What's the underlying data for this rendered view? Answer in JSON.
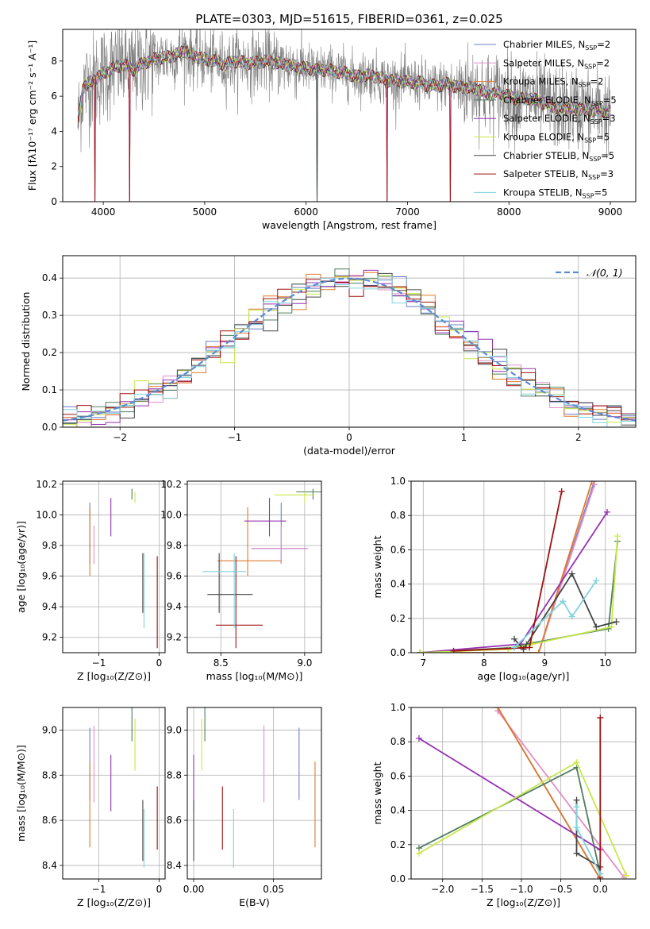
{
  "title": "PLATE=0303, MJD=51615, FIBERID=0361, z=0.025",
  "models": [
    {
      "name": "Chabrier MILES",
      "nssp": "2",
      "color": "#6b7fc8"
    },
    {
      "name": "Salpeter MILES",
      "nssp": "2",
      "color": "#e38ec6"
    },
    {
      "name": "Kroupa MILES",
      "nssp": "2",
      "color": "#e07a2b"
    },
    {
      "name": "Chabrier ELODIE",
      "nssp": "5",
      "color": "#4f7d5e"
    },
    {
      "name": "Salpeter ELODIE",
      "nssp": "3",
      "color": "#9632b1"
    },
    {
      "name": "Kroupa ELODIE",
      "nssp": "5",
      "color": "#c7e84a"
    },
    {
      "name": "Chabrier STELIB",
      "nssp": "5",
      "color": "#444444"
    },
    {
      "name": "Salpeter STELIB",
      "nssp": "3",
      "color": "#a01010"
    },
    {
      "name": "Kroupa STELIB",
      "nssp": "5",
      "color": "#7fd3dc"
    }
  ],
  "chart_data": [
    {
      "id": "spectrum",
      "type": "line",
      "xlabel": "wavelength [Angstrom, rest frame]",
      "ylabel": "Flux [fλ10⁻¹⁷ erg cm⁻² s⁻¹ A⁻¹]",
      "xlim": [
        3600,
        9250
      ],
      "ylim": [
        0,
        9.8
      ],
      "xticks": [
        4000,
        5000,
        6000,
        7000,
        8000,
        9000
      ],
      "yticks": [
        0,
        2,
        4,
        6,
        8
      ],
      "legend": "top-right",
      "data_color": "#808080",
      "continuum": {
        "x": [
          3750,
          3800,
          3900,
          4000,
          4100,
          4200,
          4300,
          4400,
          4500,
          4600,
          4700,
          4800,
          4900,
          5000,
          5100,
          5200,
          5300,
          5400,
          5500,
          5600,
          5700,
          5800,
          5900,
          6000,
          6100,
          6200,
          6300,
          6400,
          6500,
          6600,
          6700,
          6800,
          6900,
          7000,
          7100,
          7200,
          7300,
          7400,
          7500,
          7600,
          7700,
          7800,
          7900,
          8000,
          8100,
          8200,
          8300,
          8400,
          8500,
          8600,
          8700,
          8800,
          8900,
          9000
        ],
        "y": [
          4.5,
          6.5,
          6.9,
          7.3,
          7.6,
          7.8,
          7.5,
          7.9,
          8.1,
          8.2,
          8.3,
          8.6,
          8.3,
          8.1,
          8.0,
          7.8,
          8.0,
          7.9,
          7.9,
          8.0,
          7.9,
          7.8,
          7.7,
          7.6,
          7.5,
          7.5,
          7.4,
          7.3,
          7.1,
          7.2,
          7.1,
          6.9,
          6.9,
          6.8,
          6.8,
          6.6,
          6.6,
          6.7,
          6.5,
          6.5,
          6.4,
          6.1,
          6.2,
          6.0,
          5.8,
          5.9,
          5.7,
          5.5,
          5.3,
          5.3,
          5.3,
          5.2,
          5.2,
          5.1
        ]
      },
      "spikes": [
        3920,
        4260,
        6110,
        6800,
        7420
      ]
    },
    {
      "id": "residuals",
      "type": "area",
      "xlabel": "(data-model)/error",
      "ylabel": "Normed distribution",
      "xlim": [
        -2.5,
        2.5
      ],
      "ylim": [
        0,
        0.46
      ],
      "xticks": [
        -2,
        -1,
        0,
        1,
        2
      ],
      "yticks": [
        0.0,
        0.1,
        0.2,
        0.3,
        0.4
      ],
      "grid": true,
      "legend": "top-right",
      "gaussian_label": "𝒩(0, 1)",
      "gaussian_color": "#5b8bd6"
    },
    {
      "id": "age-vs-Z",
      "type": "scatter",
      "xlabel": "Z [log₁₀(Z/Z⊙)]",
      "ylabel": "age  [log₁₀(age/yr)]",
      "xlim": [
        -1.6,
        0.1
      ],
      "ylim": [
        9.1,
        10.22
      ],
      "xticks": [
        -1,
        0
      ],
      "yticks": [
        9.2,
        9.4,
        9.6,
        9.8,
        10.0,
        10.2
      ],
      "grid": true
    },
    {
      "id": "age-vs-mass",
      "type": "scatter",
      "xlabel": "mass [log₁₀(M/M⊙)]",
      "ylabel": "",
      "xlim": [
        8.3,
        9.1
      ],
      "ylim": [
        9.1,
        10.22
      ],
      "xticks": [
        8.5,
        9.0
      ],
      "yticks": [
        9.2,
        9.4,
        9.6,
        9.8,
        10.0,
        10.2
      ],
      "grid": true
    },
    {
      "id": "weight-vs-age",
      "type": "line",
      "xlabel": "age  [log₁₀(age/yr)]",
      "ylabel": "mass weight",
      "xlim": [
        6.8,
        10.5
      ],
      "ylim": [
        0,
        1
      ],
      "xticks": [
        7,
        8,
        9,
        10
      ],
      "yticks": [
        0.0,
        0.2,
        0.4,
        0.6,
        0.8,
        1.0
      ],
      "grid": true
    },
    {
      "id": "mass-vs-Z",
      "type": "scatter",
      "xlabel": "Z [log₁₀(Z/Z⊙)]",
      "ylabel": "mass [log₁₀(M/M⊙)]",
      "xlim": [
        -1.6,
        0.1
      ],
      "ylim": [
        8.34,
        9.1
      ],
      "xticks": [
        -1,
        0
      ],
      "yticks": [
        8.4,
        8.6,
        8.8,
        9.0
      ],
      "grid": true
    },
    {
      "id": "mass-vs-ebv",
      "type": "scatter",
      "xlabel": "E(B-V)",
      "ylabel": "",
      "xlim": [
        -0.004,
        0.08
      ],
      "ylim": [
        8.34,
        9.1
      ],
      "xticks": [
        0.0,
        0.05
      ],
      "yticks": [
        8.4,
        8.6,
        8.8,
        9.0
      ],
      "grid": true
    },
    {
      "id": "weight-vs-Z",
      "type": "line",
      "xlabel": "Z [log₁₀(Z/Z⊙)]",
      "ylabel": "mass weight",
      "xlim": [
        -2.4,
        0.45
      ],
      "ylim": [
        0,
        1
      ],
      "xticks": [
        -2.0,
        -1.5,
        -1.0,
        -0.5,
        0.0
      ],
      "yticks": [
        0.0,
        0.2,
        0.4,
        0.6,
        0.8,
        1.0
      ],
      "grid": true
    }
  ],
  "fits": [
    {
      "Z": -1.15,
      "Zlo": 0.2,
      "Zhi": 0.3,
      "age": 9.78,
      "ageLo": 0.1,
      "ageHi": 0.3,
      "mass": 8.86,
      "massLo": 0.17,
      "massHi": 0.15,
      "ebv": 0.066,
      "ebvLo": 0.0,
      "ebvHi": 0.0
    },
    {
      "Z": -1.08,
      "Zlo": 0.2,
      "Zhi": 0.35,
      "age": 9.78,
      "ageLo": 0.1,
      "ageHi": 0.15,
      "mass": 8.86,
      "massLo": 0.18,
      "massHi": 0.16,
      "ebv": 0.044,
      "ebvLo": 0.0,
      "ebvHi": 0.0
    },
    {
      "Z": -1.15,
      "Zlo": 0.35,
      "Zhi": 0.9,
      "age": 9.7,
      "ageLo": 0.1,
      "ageHi": 0.35,
      "mass": 8.66,
      "massLo": 0.18,
      "massHi": 0.2,
      "ebv": 0.076,
      "ebvLo": 0.0,
      "ebvHi": 0.0
    },
    {
      "Z": -0.45,
      "Zlo": 0.1,
      "Zhi": 0.4,
      "age": 10.15,
      "ageLo": 0.05,
      "ageHi": 0.02,
      "mass": 9.05,
      "massLo": 0.1,
      "massHi": 0.1,
      "ebv": 0.007,
      "ebvLo": 0.0,
      "ebvHi": 0.0
    },
    {
      "Z": -0.8,
      "Zlo": 0.5,
      "Zhi": 0.75,
      "age": 9.96,
      "ageLo": 0.1,
      "ageHi": 0.15,
      "mass": 8.79,
      "massLo": 0.15,
      "massHi": 0.1,
      "ebv": 0.0,
      "ebvLo": 0.0,
      "ebvHi": 0.0
    },
    {
      "Z": -0.4,
      "Zlo": 0.1,
      "Zhi": 0.3,
      "age": 10.13,
      "ageLo": 0.05,
      "ageHi": 0.02,
      "mass": 9.0,
      "massLo": 0.18,
      "massHi": 0.05,
      "ebv": 0.005,
      "ebvLo": 0.0,
      "ebvHi": 0.0
    },
    {
      "Z": -0.27,
      "Zlo": 0.05,
      "Zhi": 0.2,
      "age": 9.48,
      "ageLo": 0.12,
      "ageHi": 0.27,
      "mass": 8.49,
      "massLo": 0.07,
      "massHi": 0.2,
      "ebv": 0.0,
      "ebvLo": 0.0,
      "ebvHi": 0.0
    },
    {
      "Z": -0.03,
      "Zlo": 0.1,
      "Zhi": 0.05,
      "age": 9.28,
      "ageLo": 0.15,
      "ageHi": 0.45,
      "mass": 8.59,
      "massLo": 0.12,
      "massHi": 0.16,
      "ebv": 0.018,
      "ebvLo": 0.0,
      "ebvHi": 0.0
    },
    {
      "Z": -0.25,
      "Zlo": 0.05,
      "Zhi": 0.2,
      "age": 9.63,
      "ageLo": 0.37,
      "ageHi": 0.12,
      "mass": 8.58,
      "massLo": 0.19,
      "massHi": 0.07,
      "ebv": 0.025,
      "ebvLo": 0.0,
      "ebvHi": 0.0
    }
  ],
  "ssp_age_weights": [
    [
      [
        6.95,
        0.0
      ],
      [
        8.9,
        0.0
      ],
      [
        9.82,
        1.0
      ]
    ],
    [
      [
        6.95,
        0.0
      ],
      [
        8.9,
        0.0
      ],
      [
        9.82,
        0.98
      ]
    ],
    [
      [
        6.95,
        0.0
      ],
      [
        8.9,
        0.0
      ],
      [
        9.78,
        1.0
      ]
    ],
    [
      [
        6.95,
        0.0
      ],
      [
        8.5,
        0.03
      ],
      [
        8.7,
        0.05
      ],
      [
        10.05,
        0.14
      ],
      [
        10.2,
        0.65
      ]
    ],
    [
      [
        6.95,
        0.0
      ],
      [
        8.6,
        0.05
      ],
      [
        10.03,
        0.82
      ]
    ],
    [
      [
        6.95,
        0.0
      ],
      [
        8.4,
        0.02
      ],
      [
        8.8,
        0.05
      ],
      [
        10.1,
        0.15
      ],
      [
        10.2,
        0.68
      ]
    ],
    [
      [
        8.5,
        0.08
      ],
      [
        8.65,
        0.02
      ],
      [
        9.45,
        0.46
      ],
      [
        9.85,
        0.15
      ],
      [
        10.18,
        0.18
      ]
    ],
    [
      [
        7.5,
        0.01
      ],
      [
        8.75,
        0.03
      ],
      [
        9.28,
        0.94
      ]
    ],
    [
      [
        8.5,
        0.03
      ],
      [
        9.3,
        0.3
      ],
      [
        9.45,
        0.21
      ],
      [
        9.85,
        0.42
      ]
    ]
  ],
  "ssp_Z_weights": [
    [
      [
        -1.3,
        1.0
      ],
      [
        0.0,
        0.0
      ]
    ],
    [
      [
        -1.3,
        0.98
      ],
      [
        0.3,
        0.01
      ]
    ],
    [
      [
        -1.3,
        1.0
      ],
      [
        0.0,
        0.0
      ]
    ],
    [
      [
        -2.3,
        0.18
      ],
      [
        -0.3,
        0.65
      ],
      [
        0.0,
        0.03
      ]
    ],
    [
      [
        -2.3,
        0.82
      ],
      [
        0.0,
        0.17
      ]
    ],
    [
      [
        -2.3,
        0.15
      ],
      [
        -0.3,
        0.68
      ],
      [
        0.33,
        0.02
      ]
    ],
    [
      [
        -0.3,
        0.46
      ],
      [
        -0.3,
        0.15
      ],
      [
        0.0,
        0.07
      ]
    ],
    [
      [
        0.0,
        0.94
      ],
      [
        0.0,
        0.01
      ]
    ],
    [
      [
        -0.3,
        0.42
      ],
      [
        -0.3,
        0.3
      ],
      [
        0.0,
        0.03
      ]
    ]
  ]
}
